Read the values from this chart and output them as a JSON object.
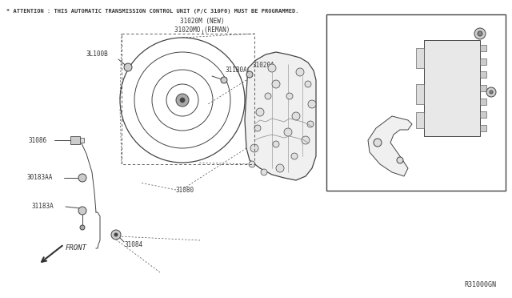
{
  "background_color": "#ffffff",
  "attention_text": "* ATTENTION : THIS AUTOMATIC TRANSMISSION CONTROL UNIT (P/C 310F6) MUST BE PROGRAMMED.",
  "label_new": "31020M (NEW)",
  "label_reman": "31020MO (REMAN)",
  "diagram_id": "R31000GN",
  "line_color": "#444444",
  "text_color": "#333333",
  "inset_bg": "#ffffff"
}
